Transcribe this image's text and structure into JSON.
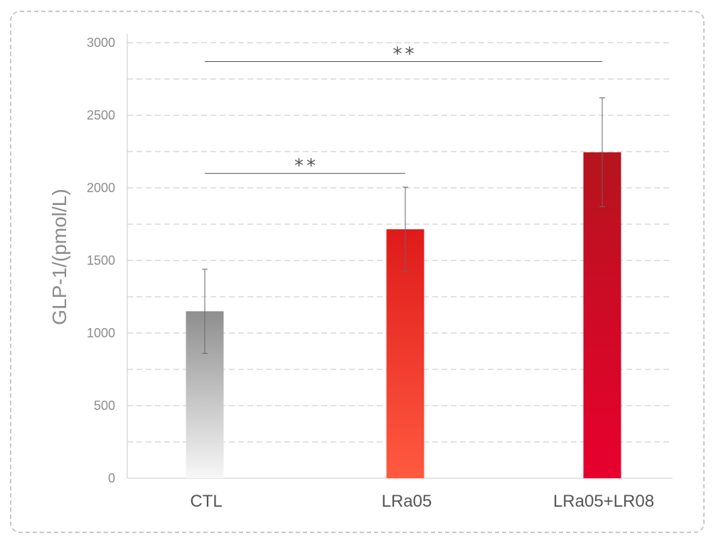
{
  "chart_data": {
    "type": "bar",
    "title": "",
    "xlabel": "",
    "ylabel": "GLP-1/(pmol/L)",
    "ylim": [
      0,
      3000
    ],
    "y_ticks": [
      0,
      500,
      1000,
      1500,
      2000,
      2500,
      3000
    ],
    "y_gridlines": [
      250,
      500,
      750,
      1000,
      1250,
      1500,
      1750,
      2000,
      2250,
      2500,
      2750,
      3000
    ],
    "grid": "dashed horizontal",
    "legend": "none",
    "categories": [
      "CTL",
      "LRa05",
      "LRa05+LR08"
    ],
    "values": [
      1150,
      1715,
      2245
    ],
    "errors": [
      290,
      290,
      375
    ],
    "colors": [
      {
        "top": "#8e8e8e",
        "bottom": "#f7f7f7"
      },
      {
        "top": "#df1a1a",
        "bottom": "#ff5a40"
      },
      {
        "top": "#b5151d",
        "bottom": "#e8002e"
      }
    ],
    "significance": [
      {
        "from": 0,
        "to": 1,
        "level": 2100,
        "label": "**"
      },
      {
        "from": 0,
        "to": 2,
        "level": 2870,
        "label": "**"
      }
    ]
  }
}
